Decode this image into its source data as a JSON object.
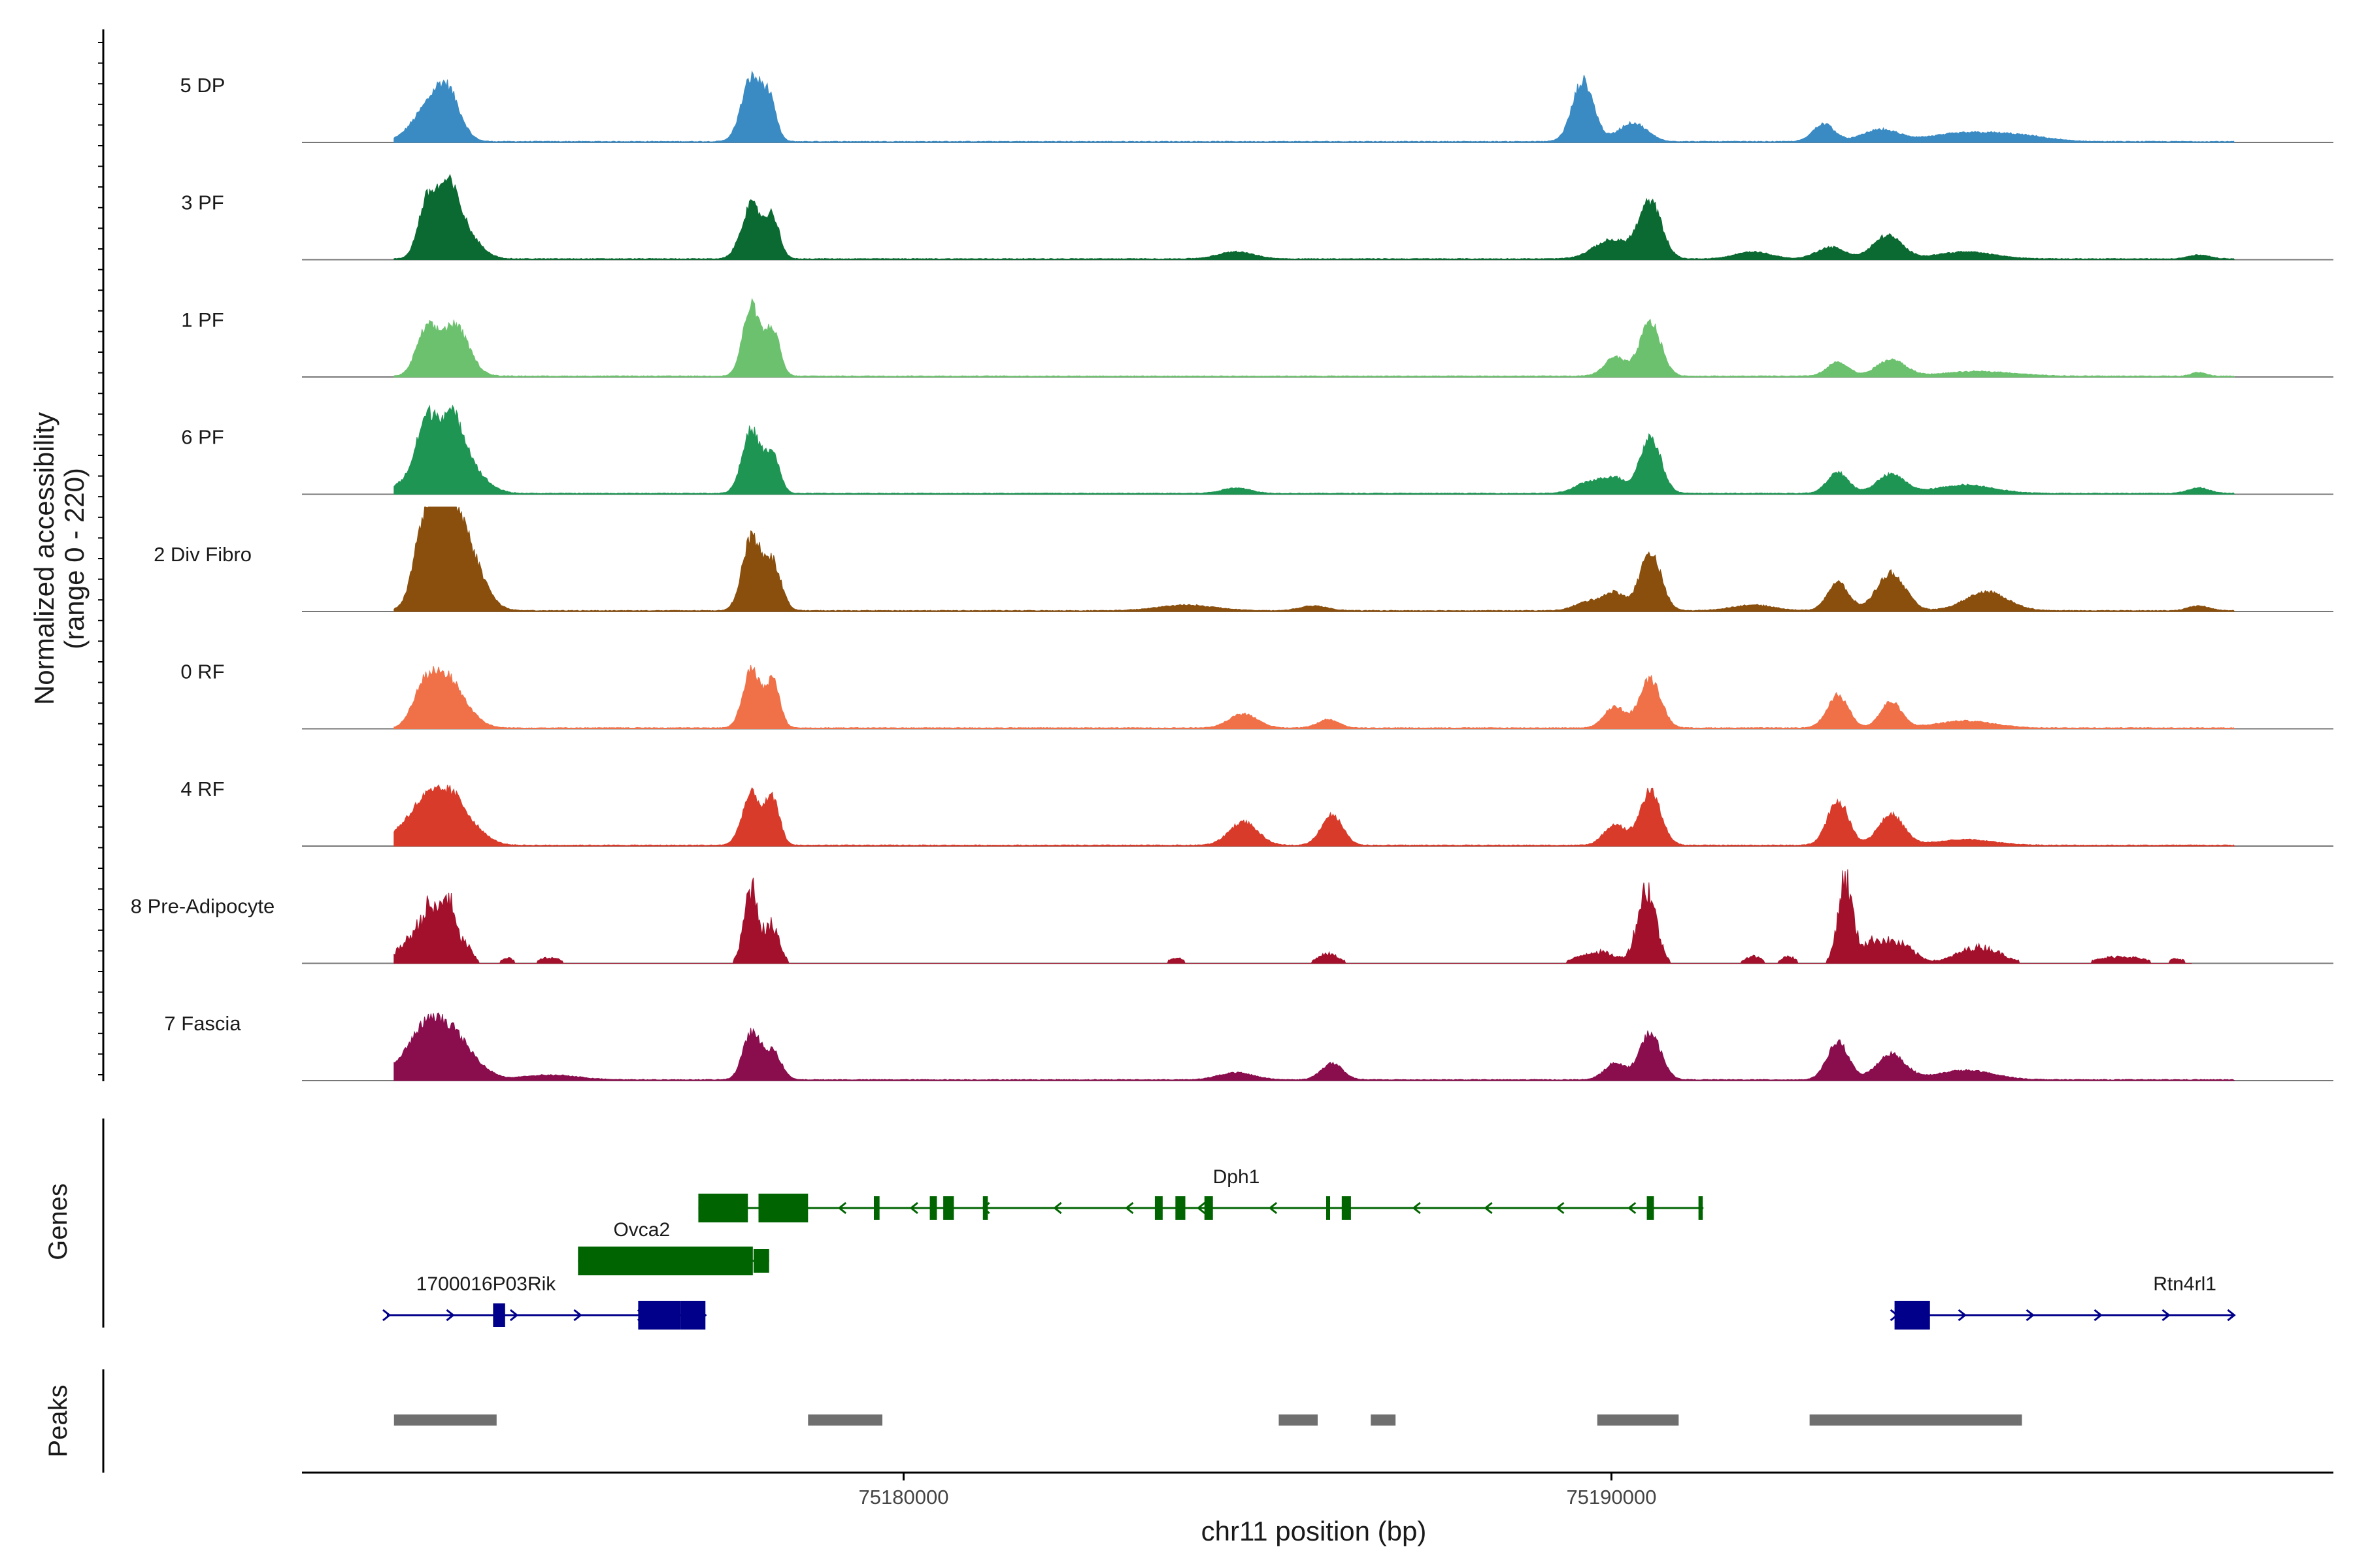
{
  "chart_data": {
    "type": "area",
    "xlabel": "chr11 position (bp)",
    "ylabel": [
      "Normalized accessibility",
      "(range 0 - 220)"
    ],
    "ylim": [
      0,
      220
    ],
    "xlim": [
      75171500,
      75200200
    ],
    "x_ticks": [
      75180000,
      75190000
    ],
    "x_tick_labels": [
      "75180000",
      "75190000"
    ],
    "tracks": [
      {
        "name": "5 DP",
        "color": "#3a8bc4",
        "peaks": [
          [
            75173250,
            60,
            220,
            0
          ],
          [
            75173550,
            100,
            180,
            0
          ],
          [
            75177850,
            135,
            140,
            0
          ],
          [
            75178100,
            80,
            100,
            0
          ],
          [
            75189600,
            130,
            150,
            0
          ],
          [
            75190300,
            40,
            200,
            0
          ],
          [
            75193000,
            38,
            150,
            0
          ],
          [
            75193800,
            25,
            250,
            0
          ],
          [
            75195000,
            18,
            500,
            0
          ],
          [
            75195800,
            10,
            400,
            0
          ]
        ],
        "sparse": false,
        "start": 75172800,
        "end": 75198800
      },
      {
        "name": "3 PF",
        "color": "#0b6a31",
        "peaks": [
          [
            75173250,
            100,
            120,
            0
          ],
          [
            75173550,
            150,
            170,
            0
          ],
          [
            75173850,
            40,
            200,
            0
          ],
          [
            75177850,
            115,
            140,
            0
          ],
          [
            75178150,
            85,
            100,
            0
          ],
          [
            75184700,
            15,
            250,
            0
          ],
          [
            75190000,
            40,
            250,
            0
          ],
          [
            75190550,
            120,
            160,
            0
          ],
          [
            75192000,
            15,
            250,
            0
          ],
          [
            75193100,
            25,
            200,
            0
          ],
          [
            75193900,
            50,
            200,
            0
          ],
          [
            75195000,
            15,
            400,
            0
          ],
          [
            75198300,
            8,
            150,
            0
          ]
        ],
        "sparse": false,
        "start": 75172800,
        "end": 75198800
      },
      {
        "name": "1 PF",
        "color": "#6cc16e",
        "peaks": [
          [
            75173250,
            90,
            140,
            0
          ],
          [
            75173650,
            110,
            200,
            0
          ],
          [
            75177850,
            150,
            120,
            0
          ],
          [
            75178150,
            100,
            100,
            0
          ],
          [
            75190050,
            40,
            150,
            0
          ],
          [
            75190550,
            115,
            150,
            0
          ],
          [
            75193200,
            30,
            150,
            0
          ],
          [
            75193950,
            35,
            200,
            0
          ],
          [
            75195200,
            10,
            500,
            0
          ],
          [
            75198300,
            8,
            100,
            0
          ]
        ],
        "sparse": false,
        "start": 75172800,
        "end": 75198800
      },
      {
        "name": "6 PF",
        "color": "#1f9554",
        "peaks": [
          [
            75173000,
            25,
            200,
            0
          ],
          [
            75173250,
            120,
            140,
            0
          ],
          [
            75173600,
            160,
            200,
            0
          ],
          [
            75173950,
            30,
            220,
            0
          ],
          [
            75177850,
            135,
            130,
            0
          ],
          [
            75178150,
            80,
            100,
            0
          ],
          [
            75184700,
            12,
            200,
            0
          ],
          [
            75189700,
            25,
            200,
            0
          ],
          [
            75190050,
            30,
            150,
            0
          ],
          [
            75190550,
            120,
            150,
            0
          ],
          [
            75193200,
            45,
            150,
            0
          ],
          [
            75193950,
            40,
            200,
            0
          ],
          [
            75195000,
            18,
            400,
            0
          ],
          [
            75198300,
            12,
            150,
            0
          ]
        ],
        "sparse": false,
        "start": 75172800,
        "end": 75198800
      },
      {
        "name": "2 Div Fibro",
        "color": "#8a4f0d",
        "peaks": [
          [
            75173250,
            170,
            160,
            0
          ],
          [
            75173600,
            215,
            220,
            0
          ],
          [
            75173950,
            60,
            200,
            0
          ],
          [
            75177850,
            155,
            130,
            0
          ],
          [
            75178150,
            100,
            120,
            0
          ],
          [
            75184000,
            12,
            400,
            0
          ],
          [
            75185800,
            10,
            200,
            0
          ],
          [
            75189700,
            20,
            200,
            0
          ],
          [
            75190050,
            35,
            150,
            0
          ],
          [
            75190550,
            125,
            150,
            0
          ],
          [
            75192000,
            12,
            300,
            0
          ],
          [
            75193200,
            60,
            150,
            0
          ],
          [
            75193950,
            80,
            200,
            0
          ],
          [
            75195300,
            40,
            300,
            0
          ],
          [
            75198300,
            10,
            150,
            0
          ]
        ],
        "sparse": false,
        "start": 75172800,
        "end": 75198800
      },
      {
        "name": "0 RF",
        "color": "#f07048",
        "peaks": [
          [
            75173200,
            70,
            150,
            0
          ],
          [
            75173500,
            100,
            200,
            0
          ],
          [
            75173800,
            30,
            200,
            0
          ],
          [
            75177850,
            125,
            120,
            0
          ],
          [
            75178150,
            100,
            100,
            0
          ],
          [
            75184800,
            30,
            200,
            0
          ],
          [
            75186000,
            18,
            150,
            0
          ],
          [
            75190050,
            45,
            150,
            0
          ],
          [
            75190550,
            105,
            150,
            0
          ],
          [
            75193200,
            70,
            150,
            0
          ],
          [
            75193950,
            55,
            150,
            0
          ],
          [
            75195000,
            15,
            400,
            0
          ]
        ],
        "sparse": false,
        "start": 75172800,
        "end": 75198800
      },
      {
        "name": "4 RF",
        "color": "#d93b2a",
        "peaks": [
          [
            75172950,
            35,
            200,
            0
          ],
          [
            75173250,
            75,
            180,
            0
          ],
          [
            75173600,
            100,
            200,
            0
          ],
          [
            75173950,
            25,
            200,
            0
          ],
          [
            75177850,
            110,
            130,
            0
          ],
          [
            75178150,
            95,
            100,
            0
          ],
          [
            75184800,
            50,
            200,
            0
          ],
          [
            75186050,
            65,
            150,
            0
          ],
          [
            75190050,
            45,
            150,
            0
          ],
          [
            75190550,
            115,
            150,
            0
          ],
          [
            75193200,
            95,
            150,
            0
          ],
          [
            75193950,
            65,
            180,
            0
          ],
          [
            75195000,
            12,
            400,
            0
          ]
        ],
        "sparse": false,
        "start": 75172800,
        "end": 75198800
      },
      {
        "name": "8 Pre-Adipocyte",
        "color": "#a3102b",
        "peaks": [
          [
            75172900,
            30,
            100,
            0
          ],
          [
            75173100,
            55,
            100,
            0
          ],
          [
            75173300,
            110,
            100,
            0
          ],
          [
            75173550,
            140,
            100,
            0
          ],
          [
            75173800,
            40,
            100,
            0
          ],
          [
            75174400,
            12,
            80,
            0
          ],
          [
            75175000,
            12,
            150,
            0
          ],
          [
            75177850,
            165,
            100,
            0
          ],
          [
            75178150,
            80,
            100,
            0
          ],
          [
            75183850,
            12,
            100,
            0
          ],
          [
            75186000,
            20,
            150,
            0
          ],
          [
            75189800,
            25,
            250,
            0
          ],
          [
            75190500,
            160,
            130,
            0
          ],
          [
            75192000,
            15,
            120,
            0
          ],
          [
            75192500,
            15,
            100,
            0
          ],
          [
            75193300,
            175,
            100,
            0
          ],
          [
            75193700,
            45,
            200,
            0
          ],
          [
            75194100,
            35,
            200,
            0
          ],
          [
            75195200,
            35,
            300,
            0
          ],
          [
            75197200,
            15,
            300,
            0
          ],
          [
            75198000,
            10,
            100,
            0
          ]
        ],
        "sparse": true,
        "start": 75172800,
        "end": 75198200
      },
      {
        "name": "7 Fascia",
        "color": "#8a0e4e",
        "peaks": [
          [
            75172900,
            30,
            200,
            0
          ],
          [
            75173250,
            100,
            200,
            0
          ],
          [
            75173600,
            90,
            200,
            0
          ],
          [
            75173950,
            30,
            200,
            0
          ],
          [
            75175000,
            10,
            400,
            0
          ],
          [
            75177850,
            100,
            120,
            0
          ],
          [
            75178150,
            60,
            120,
            0
          ],
          [
            75184700,
            15,
            250,
            0
          ],
          [
            75186050,
            35,
            150,
            0
          ],
          [
            75190050,
            35,
            150,
            0
          ],
          [
            75190550,
            100,
            150,
            0
          ],
          [
            75193200,
            80,
            150,
            0
          ],
          [
            75193950,
            55,
            200,
            0
          ],
          [
            75195000,
            20,
            400,
            0
          ]
        ],
        "sparse": false,
        "start": 75172800,
        "end": 75198800
      }
    ],
    "genes_panel_title": "Genes",
    "peaks_panel_title": "Peaks",
    "genes": [
      {
        "name": "Dph1",
        "strand": "-",
        "color": "#006400",
        "row": 0,
        "start": 75177100,
        "end": 75191300,
        "exons": [
          [
            75177100,
            75177800,
            "thick"
          ],
          [
            75177950,
            75178650,
            "thick"
          ],
          [
            75179580,
            75179660,
            "thin"
          ],
          [
            75180370,
            75180470,
            "thin"
          ],
          [
            75180560,
            75180710,
            "thin"
          ],
          [
            75181120,
            75181190,
            "thin"
          ],
          [
            75183550,
            75183660,
            "thin"
          ],
          [
            75183840,
            75183980,
            "thin"
          ],
          [
            75184250,
            75184370,
            "thin"
          ],
          [
            75185970,
            75186010,
            "thin"
          ],
          [
            75186190,
            75186320,
            "thin"
          ],
          [
            75190500,
            75190600,
            "thin"
          ],
          [
            75191230,
            75191290,
            "thin"
          ]
        ]
      },
      {
        "name": "Ovca2",
        "strand": "-",
        "color": "#006400",
        "row": 1,
        "start": 75175400,
        "end": 75178100,
        "exons": [
          [
            75175400,
            75177870,
            "thick"
          ],
          [
            75177880,
            75178100,
            "thin"
          ]
        ]
      },
      {
        "name": "1700016P03Rik",
        "strand": "+",
        "color": "#00008b",
        "row": 2,
        "start": 75172700,
        "end": 75177200,
        "exons": [
          [
            75174200,
            75174370,
            "thin"
          ],
          [
            75176250,
            75176850,
            "thick"
          ],
          [
            75176850,
            75177200,
            "thick"
          ]
        ]
      },
      {
        "name": "Rtn4rl1",
        "strand": "+",
        "color": "#00008b",
        "row": 2,
        "start": 75194000,
        "end": 75198800,
        "exons": [
          [
            75194000,
            75194500,
            "thick"
          ]
        ]
      }
    ],
    "peak_regions": [
      [
        75172800,
        75174250
      ],
      [
        75178650,
        75179700
      ],
      [
        75185300,
        75185850
      ],
      [
        75186600,
        75186950
      ],
      [
        75189800,
        75190950
      ],
      [
        75192800,
        75195800
      ]
    ]
  }
}
